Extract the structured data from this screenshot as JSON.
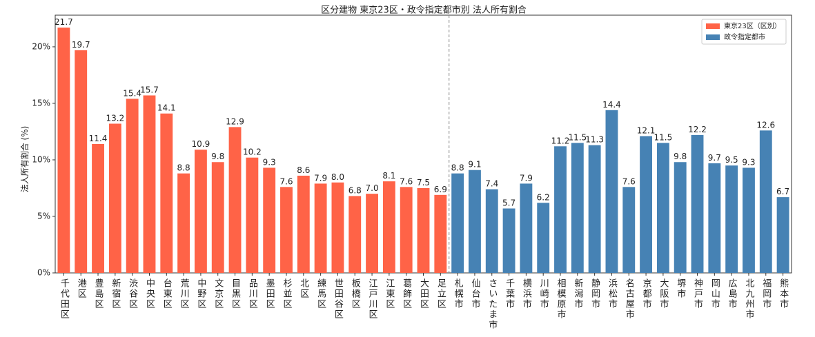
{
  "chart_data": {
    "type": "bar",
    "title": "区分建物 東京23区・政令指定都市別 法人所有割合",
    "y_label": "法人所有割合 (%)",
    "categories": [
      "千代田区",
      "港区",
      "豊島区",
      "新宿区",
      "渋谷区",
      "中央区",
      "台東区",
      "荒川区",
      "中野区",
      "文京区",
      "目黒区",
      "品川区",
      "墨田区",
      "杉並区",
      "北区",
      "練馬区",
      "世田谷区",
      "板橋区",
      "江戸川区",
      "江東区",
      "葛飾区",
      "大田区",
      "足立区",
      "札幌市",
      "仙台市",
      "さいたま市",
      "千葉市",
      "横浜市",
      "川崎市",
      "相模原市",
      "新潟市",
      "静岡市",
      "浜松市",
      "名古屋市",
      "京都市",
      "大阪市",
      "堺市",
      "神戸市",
      "岡山市",
      "広島市",
      "北九州市",
      "福岡市",
      "熊本市"
    ],
    "series": [
      {
        "name": "東京23区（区別）",
        "color": "#ff6347",
        "values": [
          21.7,
          19.7,
          11.4,
          13.2,
          15.4,
          15.7,
          14.1,
          8.8,
          10.9,
          9.8,
          12.9,
          10.2,
          9.3,
          7.6,
          8.6,
          7.9,
          8.0,
          6.8,
          7.0,
          8.1,
          7.6,
          7.5,
          6.9,
          null,
          null,
          null,
          null,
          null,
          null,
          null,
          null,
          null,
          null,
          null,
          null,
          null,
          null,
          null,
          null,
          null,
          null,
          null,
          null
        ],
        "value_labels": [
          "21.7",
          "19.7",
          "11.4",
          "13.2",
          "15.4",
          "15.7",
          "14.1",
          "8.8",
          "10.9",
          "9.8",
          "12.9",
          "10.2",
          "9.3",
          "7.6",
          "8.6",
          "7.9",
          "8.0",
          "6.8",
          "7.0",
          "8.1",
          "7.6",
          "7.5",
          "6.9",
          null,
          null,
          null,
          null,
          null,
          null,
          null,
          null,
          null,
          null,
          null,
          null,
          null,
          null,
          null,
          null,
          null,
          null,
          null,
          null
        ]
      },
      {
        "name": "政令指定都市",
        "color": "#4682b4",
        "values": [
          null,
          null,
          null,
          null,
          null,
          null,
          null,
          null,
          null,
          null,
          null,
          null,
          null,
          null,
          null,
          null,
          null,
          null,
          null,
          null,
          null,
          null,
          null,
          8.8,
          9.1,
          7.4,
          5.7,
          7.9,
          6.2,
          11.2,
          11.5,
          11.3,
          14.4,
          7.6,
          12.1,
          11.5,
          9.8,
          12.2,
          9.7,
          9.5,
          9.3,
          12.6,
          6.7
        ],
        "value_labels": [
          null,
          null,
          null,
          null,
          null,
          null,
          null,
          null,
          null,
          null,
          null,
          null,
          null,
          null,
          null,
          null,
          null,
          null,
          null,
          null,
          null,
          null,
          null,
          "8.8",
          "9.1",
          "7.4",
          "5.7",
          "7.9",
          "6.2",
          "11.2",
          "11.5",
          "11.3",
          "14.4",
          "7.6",
          "12.1",
          "11.5",
          "9.8",
          "12.2",
          "9.7",
          "9.5",
          "9.3",
          "12.6",
          "6.7"
        ]
      }
    ],
    "ylim": [
      0,
      22.8
    ],
    "yticks": [
      {
        "value": 0,
        "label": "0%"
      },
      {
        "value": 5,
        "label": "5%"
      },
      {
        "value": 10,
        "label": "10%"
      },
      {
        "value": 15,
        "label": "15%"
      },
      {
        "value": 20,
        "label": "20%"
      }
    ],
    "legend": "upper right"
  }
}
